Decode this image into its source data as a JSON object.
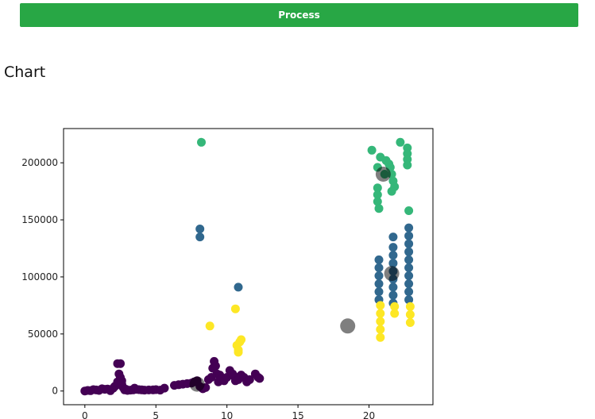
{
  "button": {
    "label": "Process"
  },
  "heading": "Chart",
  "chart_data": {
    "type": "scatter",
    "xlim": [
      -1.5,
      24.5
    ],
    "ylim": [
      -12000,
      230000
    ],
    "xticks": [
      0,
      5,
      10,
      15,
      20
    ],
    "yticks": [
      0,
      50000,
      100000,
      150000,
      200000
    ],
    "xtick_labels": [
      "0",
      "5",
      "10",
      "15",
      "20"
    ],
    "ytick_labels": [
      "0",
      "50000",
      "100000",
      "150000",
      "200000"
    ],
    "grid": false,
    "legend": false,
    "colors": {
      "purple": "#440154",
      "blue": "#31688e",
      "green": "#35b779",
      "yellow": "#fde725",
      "centroid": "#000000"
    },
    "series": [
      {
        "color": "purple",
        "points": [
          [
            0,
            0
          ],
          [
            0.2,
            500
          ],
          [
            0.4,
            300
          ],
          [
            0.6,
            1200
          ],
          [
            0.8,
            900
          ],
          [
            1,
            500
          ],
          [
            1.2,
            2000
          ],
          [
            1.4,
            1500
          ],
          [
            1.6,
            1800
          ],
          [
            1.8,
            300
          ],
          [
            2,
            2500
          ],
          [
            2.1,
            4000
          ],
          [
            2.2,
            5000
          ],
          [
            2.3,
            8000
          ],
          [
            2.3,
            24000
          ],
          [
            2.5,
            24000
          ],
          [
            2.4,
            15000
          ],
          [
            2.5,
            12000
          ],
          [
            2.6,
            9000
          ],
          [
            2.6,
            6000
          ],
          [
            2.7,
            3000
          ],
          [
            2.8,
            1000
          ],
          [
            2.9,
            1500
          ],
          [
            3,
            500
          ],
          [
            3.2,
            800
          ],
          [
            3.4,
            1000
          ],
          [
            3.5,
            2500
          ],
          [
            3.6,
            1500
          ],
          [
            3.8,
            1200
          ],
          [
            4,
            1000
          ],
          [
            4.2,
            800
          ],
          [
            4.5,
            900
          ],
          [
            4.8,
            1000
          ],
          [
            5,
            1200
          ],
          [
            5.3,
            800
          ],
          [
            5.6,
            2500
          ],
          [
            6.3,
            5000
          ],
          [
            6.6,
            5500
          ],
          [
            6.9,
            6000
          ],
          [
            7.2,
            6500
          ],
          [
            7.5,
            7000
          ],
          [
            7.7,
            8000
          ],
          [
            7.9,
            9000
          ],
          [
            8.1,
            4000
          ],
          [
            8.3,
            2000
          ],
          [
            8.5,
            3000
          ],
          [
            8.7,
            10000
          ],
          [
            8.9,
            12000
          ],
          [
            9,
            20000
          ],
          [
            9.1,
            26000
          ],
          [
            9.2,
            22000
          ],
          [
            9.3,
            15000
          ],
          [
            9.4,
            8000
          ],
          [
            9.5,
            14000
          ],
          [
            9.6,
            11000
          ],
          [
            9.8,
            9000
          ],
          [
            10,
            12000
          ],
          [
            10.2,
            18000
          ],
          [
            10.4,
            15000
          ],
          [
            10.5,
            13000
          ],
          [
            10.6,
            9000
          ],
          [
            10.8,
            10000
          ],
          [
            11,
            14000
          ],
          [
            11.2,
            12000
          ],
          [
            11.4,
            8000
          ],
          [
            11.6,
            10000
          ],
          [
            12,
            15000
          ],
          [
            12.2,
            12000
          ],
          [
            12.3,
            11000
          ]
        ]
      },
      {
        "color": "blue",
        "points": [
          [
            8.1,
            142000
          ],
          [
            8.1,
            135000
          ],
          [
            10.8,
            91000
          ],
          [
            20.7,
            115000
          ],
          [
            20.7,
            108000
          ],
          [
            20.7,
            101000
          ],
          [
            20.7,
            94000
          ],
          [
            20.7,
            87000
          ],
          [
            20.7,
            80000
          ],
          [
            21.7,
            135000
          ],
          [
            21.7,
            126000
          ],
          [
            21.7,
            119000
          ],
          [
            21.7,
            112000
          ],
          [
            21.7,
            105000
          ],
          [
            21.7,
            98000
          ],
          [
            21.7,
            91000
          ],
          [
            21.7,
            84000
          ],
          [
            21.7,
            77000
          ],
          [
            22.8,
            143000
          ],
          [
            22.8,
            136000
          ],
          [
            22.8,
            129000
          ],
          [
            22.8,
            122000
          ],
          [
            22.8,
            115000
          ],
          [
            22.8,
            108000
          ],
          [
            22.8,
            101000
          ],
          [
            22.8,
            94000
          ],
          [
            22.8,
            87000
          ],
          [
            22.8,
            80000
          ]
        ]
      },
      {
        "color": "green",
        "points": [
          [
            8.2,
            218000
          ],
          [
            20.2,
            211000
          ],
          [
            20.6,
            196000
          ],
          [
            20.8,
            205000
          ],
          [
            20.6,
            178000
          ],
          [
            20.6,
            172000
          ],
          [
            20.6,
            166000
          ],
          [
            20.7,
            160000
          ],
          [
            21.1,
            190000
          ],
          [
            21.2,
            202000
          ],
          [
            21.4,
            199000
          ],
          [
            21.5,
            196000
          ],
          [
            21.6,
            190000
          ],
          [
            21.7,
            184000
          ],
          [
            21.8,
            179000
          ],
          [
            21.6,
            175000
          ],
          [
            22.2,
            218000
          ],
          [
            22.7,
            213000
          ],
          [
            22.7,
            208000
          ],
          [
            22.7,
            203000
          ],
          [
            22.7,
            198000
          ],
          [
            22.8,
            158000
          ]
        ]
      },
      {
        "color": "yellow",
        "points": [
          [
            8.8,
            57000
          ],
          [
            10.6,
            72000
          ],
          [
            10.7,
            40000
          ],
          [
            10.8,
            36000
          ],
          [
            10.9,
            43000
          ],
          [
            11,
            45000
          ],
          [
            10.8,
            34000
          ],
          [
            20.8,
            75000
          ],
          [
            20.8,
            68000
          ],
          [
            20.8,
            61000
          ],
          [
            20.8,
            54000
          ],
          [
            20.8,
            47000
          ],
          [
            21.8,
            74000
          ],
          [
            21.8,
            68000
          ],
          [
            22.9,
            74000
          ],
          [
            22.9,
            67000
          ],
          [
            22.9,
            60000
          ]
        ]
      }
    ],
    "centroids": [
      [
        7.9,
        6000
      ],
      [
        18.5,
        57000
      ],
      [
        21.6,
        103000
      ],
      [
        21,
        190000
      ]
    ]
  }
}
